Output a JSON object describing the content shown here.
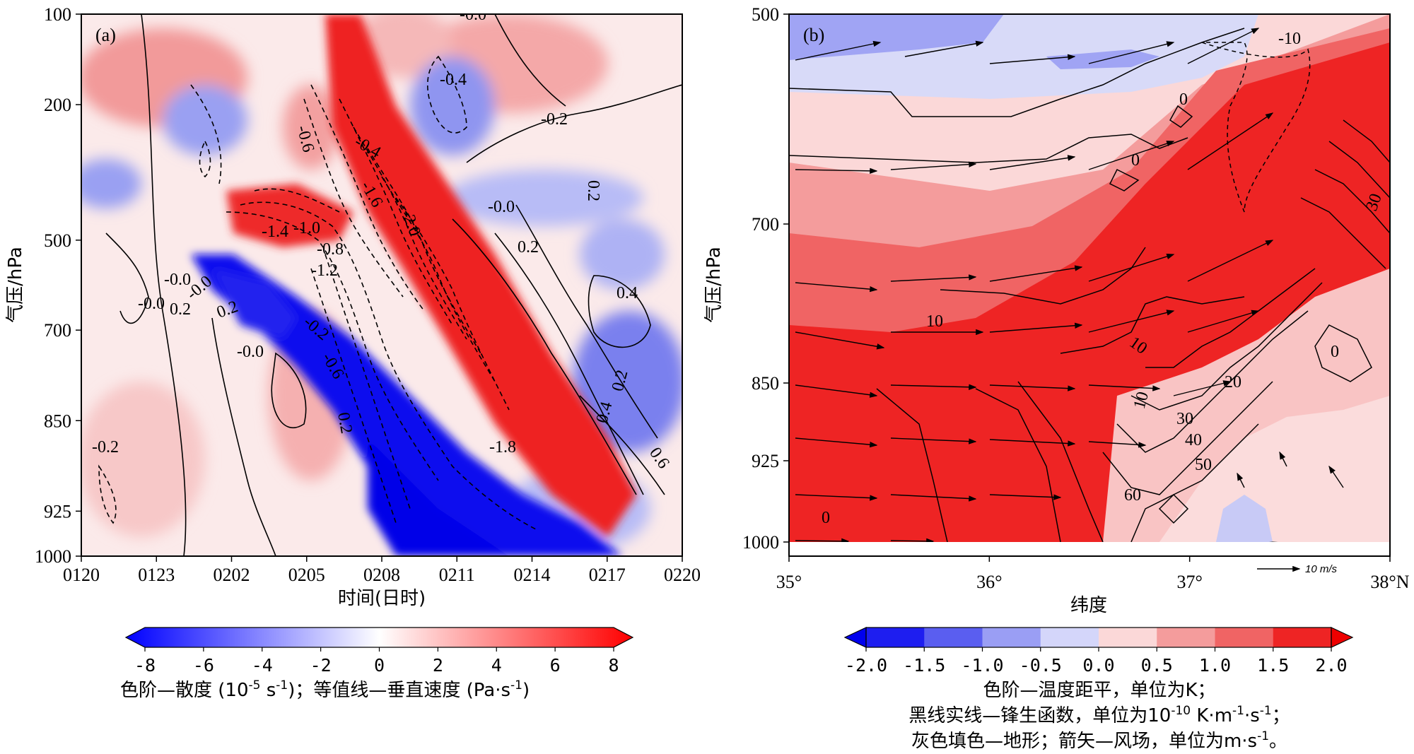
{
  "chart_data": [
    {
      "type": "heatmap",
      "panel_label": "(a)",
      "ylabel": "气压/hPa",
      "xlabel": "时间(日时)",
      "x_categories": [
        "0120",
        "0123",
        "0202",
        "0205",
        "0208",
        "0211",
        "0214",
        "0217",
        "0220"
      ],
      "y_levels": [
        100,
        200,
        500,
        700,
        850,
        925,
        1000
      ],
      "colorbar": {
        "ticks": [
          "-8",
          "-6",
          "-4",
          "-2",
          "0",
          "2",
          "4",
          "6",
          "8"
        ],
        "range": [
          -8,
          8
        ],
        "caption_prefix": "色阶—散度 (10",
        "caption_exp": "-5",
        "caption_mid": " s",
        "caption_exp2": "-1",
        "caption_suffix": ")；等值线—垂直速度 (Pa·s",
        "caption_exp3": "-1",
        "caption_end": ")"
      },
      "contour_labels": [
        "-0.0",
        "-0.4",
        "-0.2",
        "-0.6",
        "0.2",
        "-0.4",
        "-1.6",
        "-2.0",
        "-0.0",
        "0.2",
        "-1.4",
        "-1.0",
        "-0.8",
        "-1.2",
        "-0.0",
        "-0.0",
        "0.2",
        "0.4",
        "-0.0",
        "0.2",
        "-0.0",
        "-0.2",
        "-0.6",
        "0.2",
        "-1.8",
        "0.4",
        "0.2",
        "0.6",
        "-0.2"
      ]
    },
    {
      "type": "heatmap",
      "panel_label": "(b)",
      "ylabel": "气压/hPa",
      "xlabel": "纬度",
      "x_ticks": [
        "35°",
        "36°",
        "37°",
        "38°N"
      ],
      "y_levels": [
        500,
        700,
        850,
        925,
        1000
      ],
      "wind_reference": "10 m/s",
      "colorbar": {
        "ticks": [
          "-2.0",
          "-1.5",
          "-1.0",
          "-0.5",
          "0.0",
          "0.5",
          "1.0",
          "1.5",
          "2.0"
        ],
        "range": [
          -2.0,
          2.0
        ],
        "caption_line1": "色阶—温度距平，单位为K；",
        "caption_line2_prefix": "黑线实线—锋生函数，单位为10",
        "caption_line2_exp": "-10",
        "caption_line2_mid": " K·m",
        "caption_line2_exp2": "-1",
        "caption_line2_mid2": "·s",
        "caption_line2_exp3": "-1",
        "caption_line2_end": "；",
        "caption_line3_prefix": "灰色填色—地形；箭矢—风场，单位为m·s",
        "caption_line3_exp": "-1",
        "caption_line3_end": "。"
      },
      "contour_labels": [
        "-10",
        "0",
        "0",
        "10",
        "10",
        "20",
        "10",
        "30",
        "40",
        "50",
        "60",
        "0",
        "0",
        "30"
      ]
    }
  ]
}
